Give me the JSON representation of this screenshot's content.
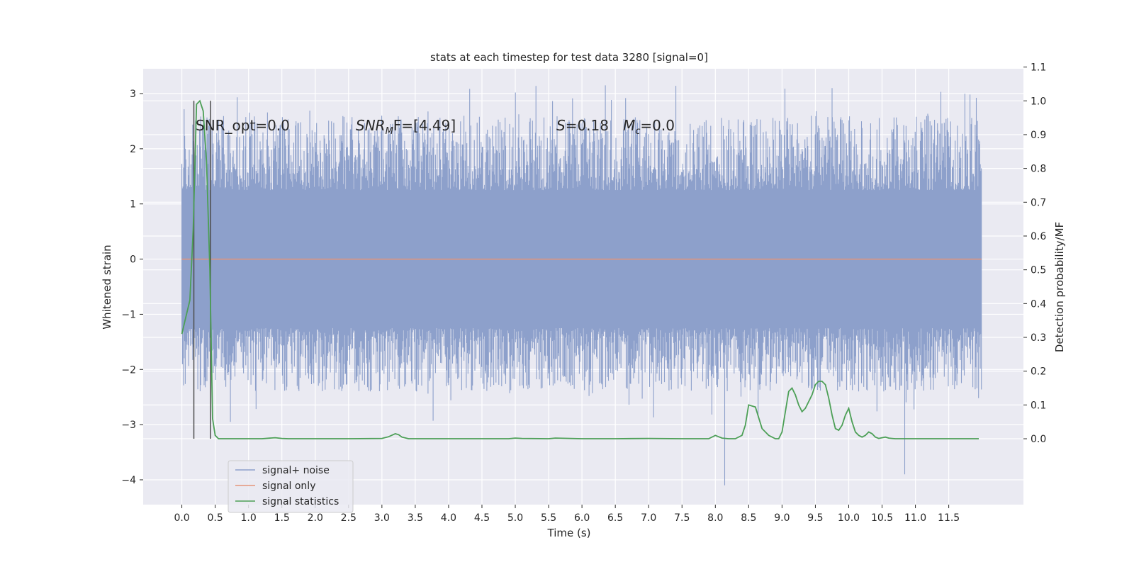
{
  "chart_data": {
    "type": "line",
    "title": "stats at each timestep for test data 3280 [signal=0]",
    "xlabel": "Time (s)",
    "ylabel": "Whitened strain",
    "y2label": "Detection probability/MF",
    "xlim": [
      -0.58,
      12.62
    ],
    "ylim": [
      -4.45,
      3.45
    ],
    "y2lim": [
      -0.195,
      1.095
    ],
    "xticks": [
      "0.0",
      "0.5",
      "1.0",
      "1.5",
      "2.0",
      "2.5",
      "3.0",
      "3.5",
      "4.0",
      "4.5",
      "5.0",
      "5.5",
      "6.0",
      "6.5",
      "7.0",
      "7.5",
      "8.0",
      "8.5",
      "9.0",
      "9.5",
      "10.0",
      "10.5",
      "11.0",
      "11.5"
    ],
    "xtick_values": [
      0.0,
      0.5,
      1.0,
      1.5,
      2.0,
      2.5,
      3.0,
      3.5,
      4.0,
      4.5,
      5.0,
      5.5,
      6.0,
      6.5,
      7.0,
      7.5,
      8.0,
      8.5,
      9.0,
      9.5,
      10.0,
      10.5,
      11.0,
      11.5
    ],
    "yticks": [
      "−4",
      "−3",
      "−2",
      "−1",
      "0",
      "1",
      "2",
      "3"
    ],
    "ytick_values": [
      -4,
      -3,
      -2,
      -1,
      0,
      1,
      2,
      3
    ],
    "y2ticks": [
      "0.0",
      "0.1",
      "0.2",
      "0.3",
      "0.4",
      "0.5",
      "0.6",
      "0.7",
      "0.8",
      "0.9",
      "1.0",
      "1.1"
    ],
    "y2tick_values": [
      0.0,
      0.1,
      0.2,
      0.3,
      0.4,
      0.5,
      0.6,
      0.7,
      0.8,
      0.9,
      1.0,
      1.1
    ],
    "grid": true,
    "legend_position": "lower-left",
    "colors": {
      "axes_bg": "#eaeaf2",
      "grid": "#ffffff",
      "noise": "#8da0cb",
      "signal": "#e5957a",
      "stats": "#4c9f56",
      "markers": "#4d4d4d"
    },
    "series": [
      {
        "name": "signal+ noise",
        "axis": "left",
        "x_range": [
          0.0,
          11.99
        ],
        "envelope": {
          "core_half_width": 1.25,
          "typical_spike_high": 2.6,
          "typical_spike_low": -2.4,
          "max": 3.15,
          "min": -4.1
        }
      },
      {
        "name": "signal only",
        "axis": "left",
        "x": [
          0.0,
          11.99
        ],
        "y": [
          0.0,
          0.0
        ]
      },
      {
        "name": "signal statistics",
        "axis": "right",
        "x": [
          0.0,
          0.06,
          0.12,
          0.17,
          0.22,
          0.27,
          0.32,
          0.37,
          0.42,
          0.46,
          0.5,
          0.55,
          0.6,
          0.65,
          0.7,
          0.8,
          1.0,
          1.2,
          1.4,
          1.5,
          1.6,
          1.8,
          2.0,
          2.5,
          3.0,
          3.1,
          3.2,
          3.25,
          3.3,
          3.4,
          3.5,
          3.6,
          4.0,
          4.5,
          4.9,
          5.0,
          5.1,
          5.5,
          5.6,
          6.0,
          6.5,
          7.0,
          7.5,
          7.9,
          8.0,
          8.1,
          8.2,
          8.3,
          8.4,
          8.45,
          8.5,
          8.6,
          8.7,
          8.8,
          8.9,
          8.95,
          9.0,
          9.05,
          9.1,
          9.15,
          9.2,
          9.25,
          9.3,
          9.35,
          9.4,
          9.45,
          9.5,
          9.55,
          9.6,
          9.65,
          9.7,
          9.75,
          9.8,
          9.85,
          9.9,
          9.95,
          10.0,
          10.05,
          10.1,
          10.15,
          10.2,
          10.25,
          10.3,
          10.35,
          10.4,
          10.45,
          10.5,
          10.55,
          10.6,
          10.65,
          10.7,
          10.8,
          10.9,
          11.0,
          11.2,
          11.4,
          11.6,
          11.8,
          11.95
        ],
        "y": [
          0.31,
          0.36,
          0.41,
          0.62,
          0.99,
          1.0,
          0.97,
          0.82,
          0.5,
          0.06,
          0.01,
          0.0,
          0.0,
          0.0,
          0.0,
          0.0,
          0.0,
          0.0,
          0.003,
          0.001,
          0.0,
          0.0,
          0.0,
          0.0,
          0.001,
          0.006,
          0.015,
          0.012,
          0.005,
          0.0,
          0.0,
          0.0,
          0.0,
          0.0,
          0.0,
          0.002,
          0.001,
          0.0,
          0.002,
          0.0,
          0.0,
          0.001,
          0.0,
          0.0,
          0.01,
          0.002,
          0.0,
          0.0,
          0.01,
          0.04,
          0.1,
          0.094,
          0.03,
          0.01,
          0.0,
          0.0,
          0.02,
          0.08,
          0.14,
          0.15,
          0.13,
          0.1,
          0.08,
          0.09,
          0.11,
          0.13,
          0.16,
          0.17,
          0.17,
          0.16,
          0.12,
          0.07,
          0.03,
          0.025,
          0.04,
          0.07,
          0.09,
          0.05,
          0.02,
          0.01,
          0.005,
          0.01,
          0.02,
          0.015,
          0.005,
          0.001,
          0.003,
          0.005,
          0.002,
          0.001,
          0.0,
          0.0,
          0.0,
          0.0,
          0.0,
          0.0,
          0.0,
          0.0,
          0.0
        ]
      }
    ],
    "vertical_markers": {
      "axis": "right",
      "x": [
        0.18,
        0.43
      ],
      "y_from": 0.0,
      "y_to": 1.0
    },
    "annotations": {
      "snr_opt": "SNR_opt=0.0",
      "snr_mf_base": "SNR",
      "snr_mf_sub": "M",
      "snr_mf_rest": "F=[4.49]",
      "s_name": "S",
      "s_rest": "=0.18",
      "mc_base": "M",
      "mc_sub": "c",
      "mc_rest": "=0.0"
    }
  }
}
